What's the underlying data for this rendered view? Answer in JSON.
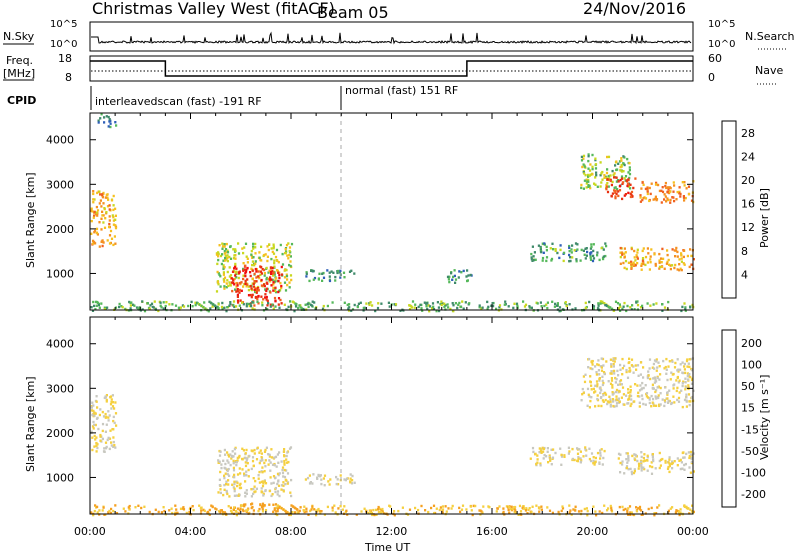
{
  "header": {
    "station": "Christmas Valley West (fitACF)",
    "beam": "Beam 05",
    "date": "24/Nov/2016"
  },
  "strips": {
    "noise_left_label": "N.Sky",
    "noise_right_label": "N.Search",
    "noise_left_ticks": [
      "10^5",
      "10^0"
    ],
    "noise_right_ticks": [
      "10^5",
      "10^0"
    ],
    "freq_left_label_1": "Freq.",
    "freq_left_label_2": "[MHz]",
    "freq_left_ticks": [
      "18",
      "8"
    ],
    "freq_right_label": "Nave",
    "freq_right_ticks": [
      "60",
      "0"
    ],
    "cpid_label": "CPID",
    "cpid_segments": [
      "interleavedscan (fast) -191 RF",
      "normal (fast) 151 RF"
    ]
  },
  "axes": {
    "xlabel": "Time UT",
    "ylabel": "Slant Range [km]",
    "x_ticks": [
      "00:00",
      "04:00",
      "08:00",
      "12:00",
      "16:00",
      "20:00",
      "00:00"
    ],
    "y_ticks": [
      "1000",
      "2000",
      "3000",
      "4000"
    ]
  },
  "colorbars": {
    "power": {
      "label": "Power [dB]",
      "ticks": [
        "4",
        "8",
        "12",
        "16",
        "20",
        "24",
        "28"
      ],
      "colors": [
        "#1a1aff",
        "#2f5fb8",
        "#3f8a6a",
        "#55b85a",
        "#c8d820",
        "#f5c020",
        "#f59020",
        "#f06020",
        "#e83010",
        "#f01010"
      ]
    },
    "velocity": {
      "label": "Velocity [m s⁻¹]",
      "ticks": [
        "200",
        "100",
        "50",
        "15",
        "-15",
        "-50",
        "-100",
        "-200"
      ],
      "colors": [
        "#1a2fa8",
        "#3d6fa0",
        "#3f9f5a",
        "#7cc84a",
        "#c8c8c0",
        "#f5d040",
        "#f5a020",
        "#f07010",
        "#e83010",
        "#f01010"
      ]
    }
  },
  "chart_data": [
    {
      "type": "line",
      "title": "N.Sky / N.Search",
      "x": [
        "00:00",
        "04:00",
        "08:00",
        "12:00",
        "16:00",
        "20:00",
        "00:00"
      ],
      "series": [
        {
          "name": "N.Sky",
          "values": [
            1.5,
            1.0,
            1.0,
            1.2,
            1.0,
            1.0,
            1.0
          ]
        }
      ],
      "ylim": [
        0,
        5
      ],
      "scale": "log"
    },
    {
      "type": "line",
      "title": "Freq. / Nave",
      "x": [
        "00:00",
        "03:00",
        "15:00",
        "24:00"
      ],
      "series": [
        {
          "name": "Freq.",
          "values": [
            16,
            10,
            10,
            16
          ]
        }
      ],
      "ylim": [
        8,
        18
      ]
    },
    {
      "type": "heatmap",
      "title": "Power [dB]",
      "xlabel": "Time UT",
      "ylabel": "Slant Range [km]",
      "xlim": [
        0,
        24
      ],
      "ylim": [
        180,
        4600
      ],
      "colorbar_range": [
        0,
        30
      ],
      "patches": [
        {
          "t": [
            0.0,
            1.0
          ],
          "range": [
            1600,
            2900
          ],
          "value": 18
        },
        {
          "t": [
            0.3,
            1.0
          ],
          "range": [
            4300,
            4600
          ],
          "value": 8
        },
        {
          "t": [
            5.0,
            8.0
          ],
          "range": [
            600,
            1700
          ],
          "value": 14
        },
        {
          "t": [
            5.6,
            7.6
          ],
          "range": [
            300,
            1200
          ],
          "value": 26
        },
        {
          "t": [
            8.5,
            10.5
          ],
          "range": [
            850,
            1100
          ],
          "value": 8
        },
        {
          "t": [
            14.2,
            15.2
          ],
          "range": [
            800,
            1100
          ],
          "value": 8
        },
        {
          "t": [
            17.5,
            20.5
          ],
          "range": [
            1300,
            1700
          ],
          "value": 9
        },
        {
          "t": [
            19.5,
            21.5
          ],
          "range": [
            2900,
            3700
          ],
          "value": 12
        },
        {
          "t": [
            20.5,
            21.7
          ],
          "range": [
            2700,
            3200
          ],
          "value": 25
        },
        {
          "t": [
            21.8,
            24.0
          ],
          "range": [
            2600,
            3100
          ],
          "value": 20
        },
        {
          "t": [
            21.0,
            24.0
          ],
          "range": [
            1100,
            1600
          ],
          "value": 18
        },
        {
          "t": [
            0.0,
            24.0
          ],
          "range": [
            180,
            400
          ],
          "value": 10
        }
      ]
    },
    {
      "type": "heatmap",
      "title": "Velocity",
      "xlabel": "Time UT",
      "ylabel": "Slant Range [km]",
      "xlim": [
        0,
        24
      ],
      "ylim": [
        180,
        4600
      ],
      "colorbar_range": [
        -200,
        200
      ],
      "patches": [
        {
          "t": [
            0.0,
            1.0
          ],
          "range": [
            1600,
            2900
          ],
          "value": 0
        },
        {
          "t": [
            5.0,
            8.0
          ],
          "range": [
            600,
            1700
          ],
          "value": 0
        },
        {
          "t": [
            5.6,
            7.6
          ],
          "range": [
            250,
            450
          ],
          "value": -60
        },
        {
          "t": [
            8.5,
            10.5
          ],
          "range": [
            850,
            1100
          ],
          "value": 0
        },
        {
          "t": [
            17.5,
            20.5
          ],
          "range": [
            1300,
            1700
          ],
          "value": 0
        },
        {
          "t": [
            19.5,
            24.0
          ],
          "range": [
            2600,
            3700
          ],
          "value": 0
        },
        {
          "t": [
            21.0,
            24.0
          ],
          "range": [
            1100,
            1600
          ],
          "value": 0
        },
        {
          "t": [
            0.0,
            24.0
          ],
          "range": [
            180,
            400
          ],
          "value": -40
        }
      ]
    }
  ]
}
